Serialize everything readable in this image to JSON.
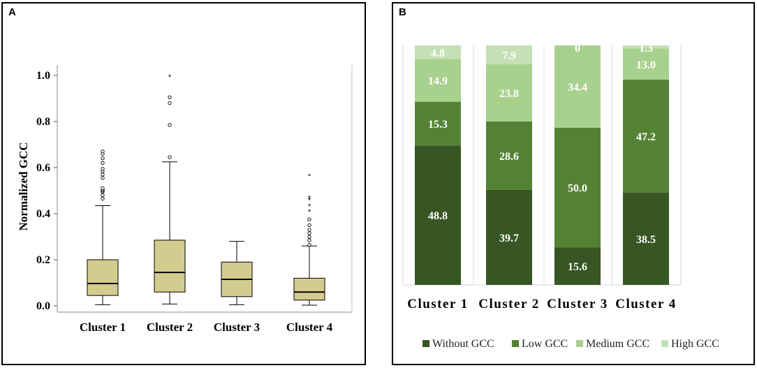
{
  "chart_data": [
    {
      "panel": "A",
      "type": "boxplot",
      "ylabel": "Normalized GCC",
      "xlabel": "",
      "ylim": [
        0,
        1.0
      ],
      "yticks": [
        "0.0",
        "0.2",
        "0.4",
        "0.6",
        "0.8",
        "1.0"
      ],
      "yticks_values": [
        0,
        0.2,
        0.4,
        0.6,
        0.8,
        1.0
      ],
      "categories": [
        "Cluster 1",
        "Cluster 2",
        "Cluster 3",
        "Cluster 4"
      ],
      "box_color": "#d4cc8e",
      "boxes": [
        {
          "whisker_low": 0.005,
          "q1": 0.045,
          "median": 0.097,
          "q3": 0.2,
          "whisker_high": 0.435,
          "outliers": [
            0.465,
            0.48,
            0.495,
            0.5,
            0.505,
            0.51,
            0.555,
            0.57,
            0.585,
            0.595,
            0.62,
            0.64,
            0.66,
            0.67
          ],
          "extremes": []
        },
        {
          "whisker_low": 0.008,
          "q1": 0.06,
          "median": 0.145,
          "q3": 0.285,
          "whisker_high": 0.625,
          "outliers": [
            0.645,
            0.785,
            0.88,
            0.905
          ],
          "extremes": [
            1.0
          ]
        },
        {
          "whisker_low": 0.005,
          "q1": 0.04,
          "median": 0.115,
          "q3": 0.19,
          "whisker_high": 0.28,
          "outliers": [],
          "extremes": []
        },
        {
          "whisker_low": 0.003,
          "q1": 0.025,
          "median": 0.06,
          "q3": 0.12,
          "whisker_high": 0.26,
          "outliers": [
            0.265,
            0.285,
            0.3,
            0.315,
            0.33,
            0.35,
            0.375
          ],
          "extremes": [
            0.415,
            0.44,
            0.465,
            0.475,
            0.57
          ]
        }
      ]
    },
    {
      "panel": "B",
      "type": "stacked-bar",
      "categories": [
        "Cluster 1",
        "Cluster 2",
        "Cluster 3",
        "Cluster 4"
      ],
      "ylim": [
        0,
        100
      ],
      "series": [
        {
          "name": "Without GCC",
          "color": "#375623",
          "values": [
            48.8,
            39.7,
            15.6,
            38.5
          ],
          "labels": [
            "48.8",
            "39.7",
            "15.6",
            "38.5"
          ]
        },
        {
          "name": "Low GCC",
          "color": "#548235",
          "values": [
            15.3,
            28.6,
            50.0,
            47.2
          ],
          "labels": [
            "15.3",
            "28.6",
            "50.0",
            "47.2"
          ]
        },
        {
          "name": "Medium GCC",
          "color": "#a9d18e",
          "values": [
            14.9,
            23.8,
            34.4,
            13.0
          ],
          "labels": [
            "14.9",
            "23.8",
            "34.4",
            "13.0"
          ]
        },
        {
          "name": "High GCC",
          "color": "#c5e0b4",
          "values": [
            4.8,
            7.9,
            0,
            1.3
          ],
          "labels": [
            "4.8",
            "7.9",
            "0",
            "1.3"
          ]
        }
      ],
      "legend": "bottom"
    }
  ],
  "panels": {
    "a_label": "A",
    "b_label": "B"
  }
}
